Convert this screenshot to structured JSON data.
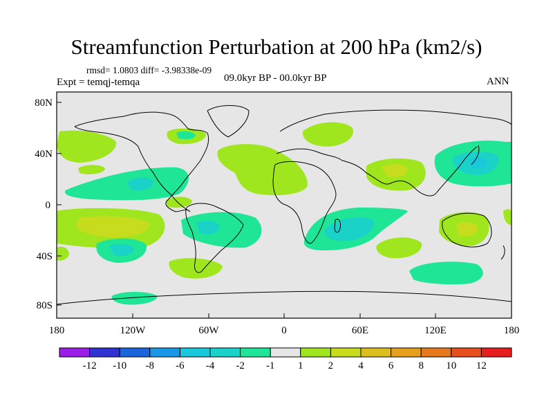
{
  "title": "Streamfunction Perturbation at 200 hPa (km2/s)",
  "stats": {
    "rmsd_label": "rmsd= 1.0803 diff= -3.98338e-09"
  },
  "experiment": "Expt = temqj-temqa",
  "period": "09.0kyr BP - 00.0kyr BP",
  "season": "ANN",
  "map": {
    "latitude_labels": [
      "80N",
      "40N",
      "0",
      "40S",
      "80S"
    ],
    "longitude_labels": [
      "180",
      "120W",
      "60W",
      "0",
      "60E",
      "120E",
      "180"
    ],
    "land_outline_color": "#000000",
    "background_color": "#e6e6e6"
  },
  "colorbar": {
    "colors": [
      "#9a1ee6",
      "#3232d2",
      "#1a64dc",
      "#1a96e6",
      "#1ac8dc",
      "#1ad2c8",
      "#1ee696",
      "#e6e6e6",
      "#a0e61e",
      "#c8dc1e",
      "#dcbe1e",
      "#e6a01e",
      "#e6781e",
      "#e6501e",
      "#e61e1e"
    ],
    "labels": [
      "-12",
      "-10",
      "-8",
      "-6",
      "-4",
      "-2",
      "-1",
      "1",
      "2",
      "4",
      "6",
      "8",
      "10",
      "12"
    ]
  }
}
